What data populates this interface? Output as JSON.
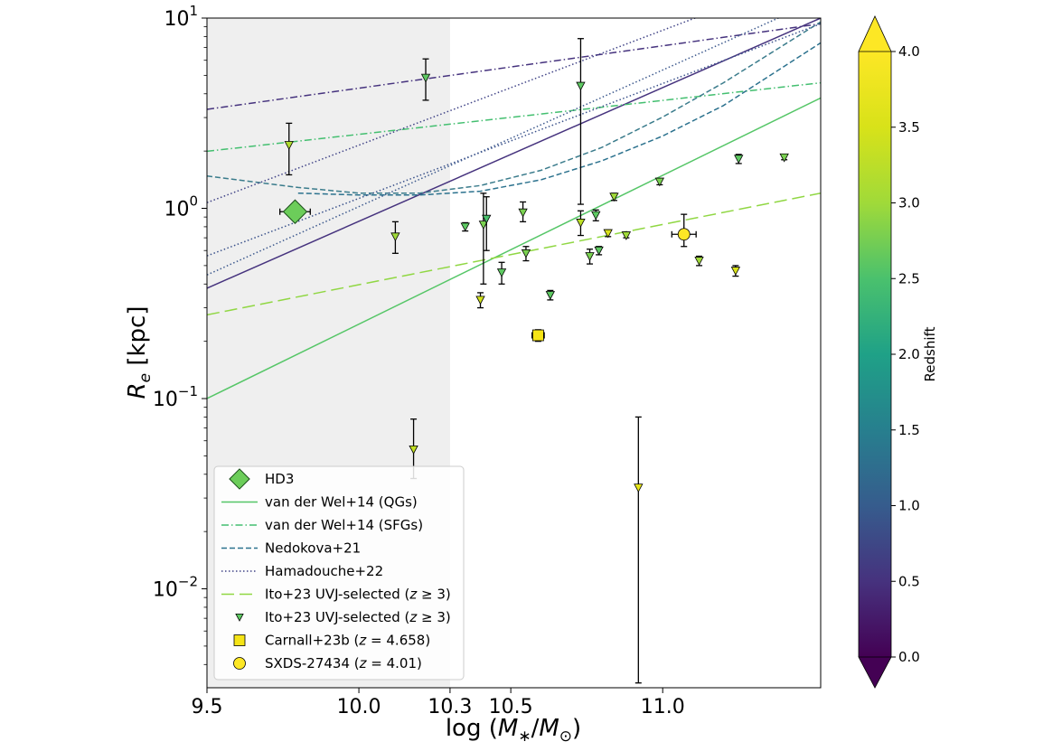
{
  "chart_data": {
    "type": "scatter",
    "xlabel": "log (M*/M⊙)",
    "ylabel": "Re [kpc]",
    "xlim": [
      9.5,
      11.52
    ],
    "ylim_log10": [
      -2.52,
      1.0
    ],
    "x_scale": "linear",
    "y_scale": "log",
    "x_ticks": [
      {
        "value": 9.5,
        "label": "9.5"
      },
      {
        "value": 10.0,
        "label": "10.0"
      },
      {
        "value": 10.3,
        "label": "10.3"
      },
      {
        "value": 10.5,
        "label": "10.5"
      },
      {
        "value": 11.0,
        "label": "11.0"
      }
    ],
    "y_ticks": [
      {
        "exp": 1,
        "base": "10",
        "sup": "1"
      },
      {
        "exp": 0,
        "base": "10",
        "sup": "0"
      },
      {
        "exp": -1,
        "base": "10",
        "sup": "−1"
      },
      {
        "exp": -2,
        "base": "10",
        "sup": "−2"
      }
    ],
    "shaded_region": {
      "x_from": 9.5,
      "x_to": 10.3
    },
    "colorbar": {
      "label": "Redshift",
      "range": [
        0.0,
        4.0
      ],
      "colormap": "viridis",
      "extend": "both",
      "ticks": [
        "0.0",
        "0.5",
        "1.0",
        "1.5",
        "2.0",
        "2.5",
        "3.0",
        "3.5",
        "4.0"
      ]
    },
    "lines": [
      {
        "name": "van der Wel+14 (QGs)",
        "color": "#55c667",
        "style": "solid",
        "points": [
          [
            9.5,
            -1.0
          ],
          [
            11.52,
            0.58
          ]
        ]
      },
      {
        "name": "",
        "color": "#46337e",
        "style": "solid",
        "points": [
          [
            9.5,
            -0.42
          ],
          [
            11.52,
            1.0
          ]
        ]
      },
      {
        "name": "van der Wel+14 (SFGs)",
        "color": "#44bf70",
        "style": "dashdot",
        "points": [
          [
            9.5,
            0.3
          ],
          [
            11.52,
            0.66
          ]
        ]
      },
      {
        "name": "",
        "color": "#46337e",
        "style": "dashdot",
        "points": [
          [
            9.5,
            0.52
          ],
          [
            11.52,
            0.97
          ]
        ]
      },
      {
        "name": "Nedokova+21",
        "color": "#3b7c8c",
        "style": "dashed",
        "points": [
          [
            9.5,
            0.17
          ],
          [
            9.8,
            0.11
          ],
          [
            10.0,
            0.08
          ],
          [
            10.2,
            0.08
          ],
          [
            10.4,
            0.12
          ],
          [
            10.6,
            0.2
          ],
          [
            10.8,
            0.32
          ],
          [
            11.0,
            0.48
          ],
          [
            11.2,
            0.66
          ],
          [
            11.52,
            0.98
          ]
        ]
      },
      {
        "name": "",
        "color": "#2c728e",
        "style": "dashed",
        "points": [
          [
            9.8,
            0.08
          ],
          [
            10.0,
            0.07
          ],
          [
            10.2,
            0.07
          ],
          [
            10.4,
            0.09
          ],
          [
            10.6,
            0.15
          ],
          [
            10.8,
            0.25
          ],
          [
            11.0,
            0.38
          ],
          [
            11.2,
            0.54
          ],
          [
            11.52,
            0.87
          ]
        ]
      },
      {
        "name": "Hamadouche+22",
        "color": "#414487",
        "style": "dotted",
        "points": [
          [
            9.5,
            0.03
          ],
          [
            11.52,
            1.25
          ]
        ]
      },
      {
        "name": "",
        "color": "#3e5a8e",
        "style": "dotted",
        "points": [
          [
            9.5,
            -0.35
          ],
          [
            11.52,
            1.1
          ]
        ]
      },
      {
        "name": "",
        "color": "#3b528b",
        "style": "dotted",
        "points": [
          [
            9.5,
            -0.25
          ],
          [
            11.52,
            0.97
          ]
        ]
      },
      {
        "name": "Ito+23 UVJ-selected (z ≥ 3)",
        "color": "#90d743",
        "style": "longdash",
        "points": [
          [
            9.5,
            -0.56
          ],
          [
            11.52,
            0.08
          ]
        ]
      }
    ],
    "series": [
      {
        "name": "HD3",
        "marker": "diamond",
        "color": "#6ccd5a",
        "points": [
          {
            "x": 9.79,
            "y": 0.96,
            "xerr": 0.05
          }
        ]
      },
      {
        "name": "Ito+23 UVJ-selected (z ≥ 3)",
        "marker": "triangle-down",
        "points": [
          {
            "x": 9.77,
            "y": 2.15,
            "ylo": 1.5,
            "yhi": 2.8,
            "color": "#b0dd2f"
          },
          {
            "x": 10.22,
            "y": 4.85,
            "ylo": 3.7,
            "yhi": 6.1,
            "color": "#5ec962"
          },
          {
            "x": 10.12,
            "y": 0.71,
            "ylo": 0.58,
            "yhi": 0.85,
            "color": "#a0da39"
          },
          {
            "x": 10.18,
            "y": 0.054,
            "ylo": 0.038,
            "yhi": 0.078,
            "color": "#c2df23"
          },
          {
            "x": 10.35,
            "y": 0.8,
            "ylo": 0.76,
            "yhi": 0.84,
            "color": "#5ec962"
          },
          {
            "x": 10.4,
            "y": 0.33,
            "ylo": 0.3,
            "yhi": 0.36,
            "color": "#d0e11c"
          },
          {
            "x": 10.41,
            "y": 0.82,
            "ylo": 0.4,
            "yhi": 1.2,
            "color": "#7ad151"
          },
          {
            "x": 10.42,
            "y": 0.88,
            "ylo": 0.6,
            "yhi": 1.15,
            "color": "#4ac16d"
          },
          {
            "x": 10.47,
            "y": 0.46,
            "ylo": 0.4,
            "yhi": 0.52,
            "color": "#5ec962"
          },
          {
            "x": 10.54,
            "y": 0.95,
            "ylo": 0.85,
            "yhi": 1.08,
            "color": "#7ad151"
          },
          {
            "x": 10.55,
            "y": 0.58,
            "ylo": 0.53,
            "yhi": 0.63,
            "color": "#7ad151"
          },
          {
            "x": 10.63,
            "y": 0.35,
            "ylo": 0.33,
            "yhi": 0.37,
            "color": "#5ec962"
          },
          {
            "x": 10.73,
            "y": 4.4,
            "ylo": 1.05,
            "yhi": 7.8,
            "color": "#5ec962"
          },
          {
            "x": 10.73,
            "y": 0.84,
            "ylo": 0.72,
            "yhi": 0.97,
            "color": "#bddf26"
          },
          {
            "x": 10.76,
            "y": 0.56,
            "ylo": 0.51,
            "yhi": 0.61,
            "color": "#7ad151"
          },
          {
            "x": 10.78,
            "y": 0.92,
            "ylo": 0.86,
            "yhi": 0.98,
            "color": "#5ec962"
          },
          {
            "x": 10.79,
            "y": 0.6,
            "ylo": 0.57,
            "yhi": 0.63,
            "color": "#5ec962"
          },
          {
            "x": 10.82,
            "y": 0.74,
            "ylo": 0.71,
            "yhi": 0.77,
            "color": "#d8e219"
          },
          {
            "x": 10.84,
            "y": 1.15,
            "ylo": 1.1,
            "yhi": 1.2,
            "color": "#a0da39"
          },
          {
            "x": 10.88,
            "y": 0.72,
            "ylo": 0.7,
            "yhi": 0.74,
            "color": "#a0da39"
          },
          {
            "x": 10.92,
            "y": 0.034,
            "ylo": 0.0032,
            "yhi": 0.08,
            "color": "#e5e419"
          },
          {
            "x": 10.99,
            "y": 1.38,
            "ylo": 1.33,
            "yhi": 1.43,
            "color": "#7ad151"
          },
          {
            "x": 11.12,
            "y": 0.53,
            "ylo": 0.5,
            "yhi": 0.56,
            "color": "#a0da39"
          },
          {
            "x": 11.24,
            "y": 0.47,
            "ylo": 0.44,
            "yhi": 0.5,
            "color": "#d8e219"
          },
          {
            "x": 11.25,
            "y": 1.82,
            "ylo": 1.72,
            "yhi": 1.92,
            "color": "#5ec962"
          },
          {
            "x": 11.4,
            "y": 1.85,
            "ylo": 1.8,
            "yhi": 1.9,
            "color": "#7ad151"
          }
        ]
      },
      {
        "name": "Carnall+23b (z = 4.658)",
        "marker": "square",
        "color": "#f5e416",
        "points": [
          {
            "x": 10.59,
            "y": 0.215,
            "xerr": 0.02,
            "ylo": 0.2,
            "yhi": 0.23
          }
        ]
      },
      {
        "name": "SXDS-27434 (z = 4.01)",
        "marker": "circle",
        "color": "#fde725",
        "points": [
          {
            "x": 11.07,
            "y": 0.73,
            "xerr": 0.04,
            "ylo": 0.63,
            "yhi": 0.93
          }
        ]
      }
    ],
    "legend": {
      "position": "lower-left",
      "entries": [
        {
          "label": "HD3",
          "marker": "diamond",
          "color": "#6ccd5a"
        },
        {
          "label": "van der Wel+14 (QGs)",
          "line": "solid",
          "color": "#55c667"
        },
        {
          "label": "van der Wel+14 (SFGs)",
          "line": "dashdot",
          "color": "#44bf70"
        },
        {
          "label": "Nedokova+21",
          "line": "dashed",
          "color": "#2c728e"
        },
        {
          "label": "Hamadouche+22",
          "line": "dotted",
          "color": "#414487"
        },
        {
          "label": "Ito+23 UVJ-selected (z ≥ 3)",
          "line": "longdash",
          "color": "#90d743"
        },
        {
          "label": "Ito+23 UVJ-selected (z ≥ 3)",
          "marker": "triangle-down",
          "color": "#5ec962"
        },
        {
          "label": "Carnall+23b (z = 4.658)",
          "marker": "square",
          "color": "#f5e416"
        },
        {
          "label": "SXDS-27434 (z = 4.01)",
          "marker": "circle",
          "color": "#fde725"
        }
      ]
    }
  }
}
